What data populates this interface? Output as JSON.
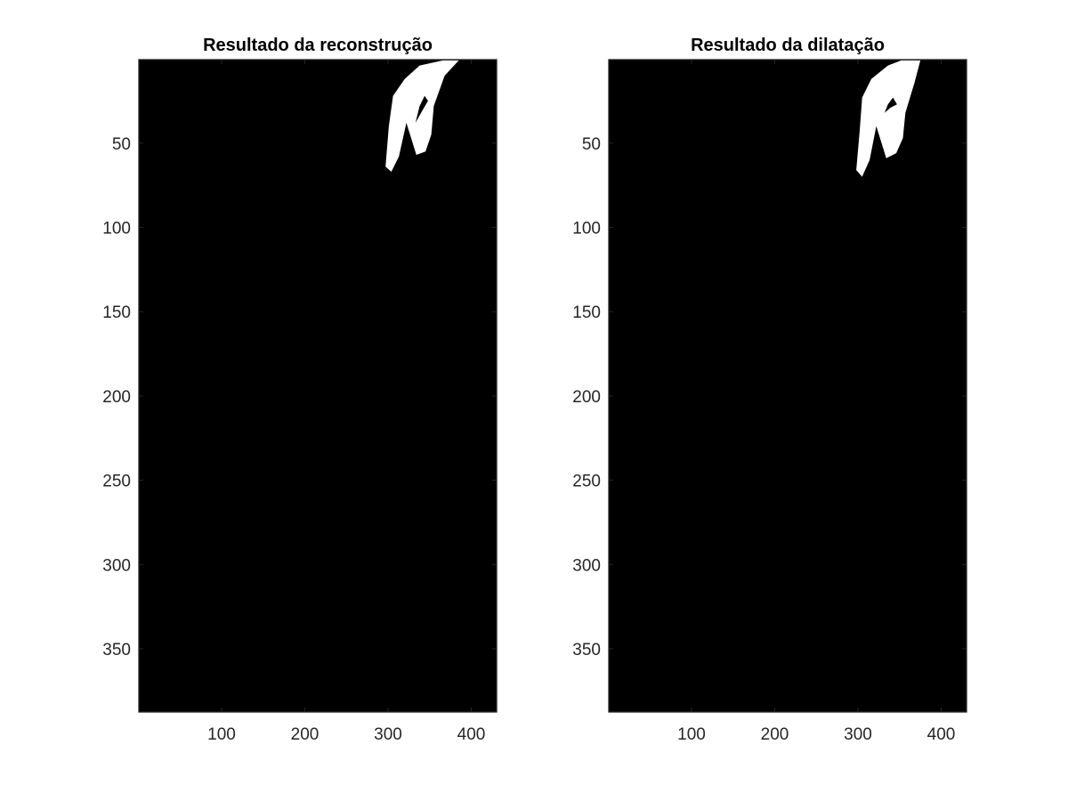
{
  "chart_data": [
    {
      "type": "heatmap",
      "title": "Resultado da reconstrução",
      "xlabel": "",
      "ylabel": "",
      "xlim": [
        0.5,
        430.5
      ],
      "ylim": [
        0.5,
        387.5
      ],
      "y_reversed": true,
      "grid": false,
      "x_ticks": [
        100,
        200,
        300,
        400
      ],
      "y_ticks": [
        50,
        100,
        150,
        200,
        250,
        300,
        350
      ],
      "background_color": "#000000",
      "foreground_color": "#ffffff",
      "white_regions": [
        [
          [
            366,
            1
          ],
          [
            385,
            1
          ],
          [
            368,
            10
          ],
          [
            355,
            28
          ],
          [
            352,
            45
          ],
          [
            345,
            55
          ],
          [
            334,
            57
          ],
          [
            322,
            38
          ],
          [
            313,
            58
          ],
          [
            304,
            67
          ],
          [
            297,
            64
          ],
          [
            301,
            40
          ],
          [
            306,
            22
          ],
          [
            320,
            12
          ],
          [
            338,
            4
          ]
        ],
        [
          [
            333,
            38
          ],
          [
            342,
            30
          ],
          [
            348,
            25
          ],
          [
            344,
            22
          ],
          [
            338,
            28
          ]
        ]
      ]
    },
    {
      "type": "heatmap",
      "title": "Resultado da dilatação",
      "xlabel": "",
      "ylabel": "",
      "xlim": [
        0.5,
        430.5
      ],
      "ylim": [
        0.5,
        387.5
      ],
      "y_reversed": true,
      "grid": false,
      "x_ticks": [
        100,
        200,
        300,
        400
      ],
      "y_ticks": [
        50,
        100,
        150,
        200,
        250,
        300,
        350
      ],
      "background_color": "#000000",
      "foreground_color": "#ffffff",
      "white_regions": [
        [
          [
            370,
            1
          ],
          [
            375,
            1
          ],
          [
            368,
            14
          ],
          [
            357,
            32
          ],
          [
            354,
            47
          ],
          [
            346,
            56
          ],
          [
            334,
            59
          ],
          [
            322,
            40
          ],
          [
            314,
            60
          ],
          [
            305,
            70
          ],
          [
            298,
            66
          ],
          [
            302,
            43
          ],
          [
            305,
            23
          ],
          [
            316,
            12
          ],
          [
            336,
            4
          ],
          [
            352,
            1
          ]
        ],
        [
          [
            332,
            32
          ],
          [
            339,
            29
          ],
          [
            347,
            27
          ],
          [
            342,
            23
          ],
          [
            336,
            27
          ]
        ]
      ]
    }
  ]
}
